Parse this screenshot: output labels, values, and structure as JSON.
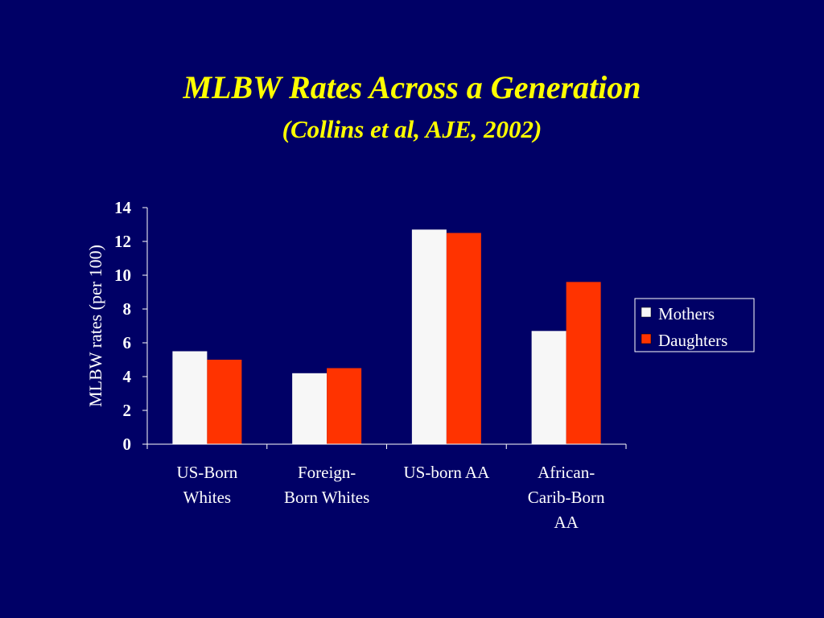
{
  "slide": {
    "title": "MLBW Rates Across a Generation",
    "subtitle": "(Collins et al, AJE, 2002)"
  },
  "colors": {
    "background": "#000066",
    "title": "#ffff00",
    "text": "#ffffff",
    "mothers": "#f7f7f7",
    "daughters": "#ff3300"
  },
  "chart_data": {
    "type": "bar",
    "title": "",
    "xlabel": "",
    "ylabel": "MLBW rates (per 100)",
    "categories": [
      [
        "US-Born",
        "Whites"
      ],
      [
        "Foreign-",
        "Born Whites"
      ],
      [
        "US-born AA"
      ],
      [
        "African-",
        "Carib-Born",
        "AA"
      ]
    ],
    "series": [
      {
        "name": "Mothers",
        "values": [
          5.5,
          4.2,
          12.7,
          6.7
        ]
      },
      {
        "name": "Daughters",
        "values": [
          5.0,
          4.5,
          12.5,
          9.6
        ]
      }
    ],
    "ylim": [
      0,
      14
    ],
    "yticks": [
      0,
      2,
      4,
      6,
      8,
      10,
      12,
      14
    ],
    "grid": false,
    "legend": "right"
  }
}
